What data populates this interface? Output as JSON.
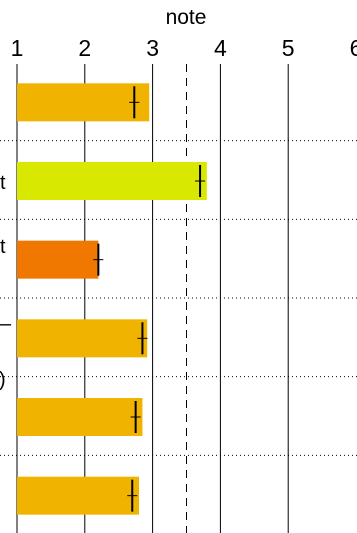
{
  "chart_data": {
    "type": "bar",
    "orientation": "horizontal",
    "xlabel": "note",
    "xlim": [
      1,
      6
    ],
    "x_ticks": [
      "1",
      "2",
      "3",
      "4",
      "5",
      "6"
    ],
    "reference_line": 3.5,
    "bars": [
      {
        "value": 2.95,
        "marker": 2.73,
        "color": "#f0b400"
      },
      {
        "value": 3.8,
        "marker": 3.7,
        "color": "#d9e800"
      },
      {
        "value": 2.2,
        "marker": 2.2,
        "color": "#f07800"
      },
      {
        "value": 2.92,
        "marker": 2.85,
        "color": "#f0b400"
      },
      {
        "value": 2.85,
        "marker": 2.75,
        "color": "#f0b400"
      },
      {
        "value": 2.8,
        "marker": 2.7,
        "color": "#f0b400"
      }
    ],
    "partial_labels": [
      "t",
      "t",
      "–",
      ")"
    ]
  }
}
